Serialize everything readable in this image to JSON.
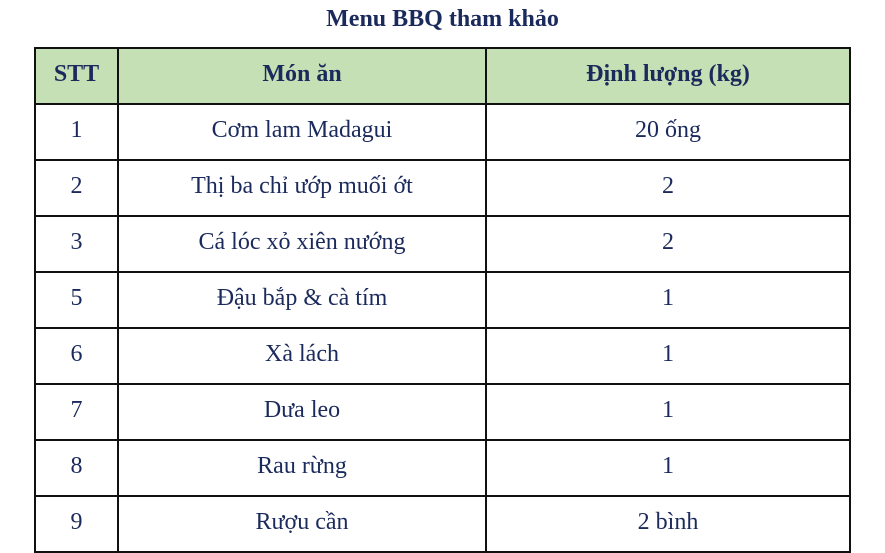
{
  "title": "Menu BBQ tham khảo",
  "colors": {
    "header_bg": "#c5e0b4",
    "text": "#1b2a5c"
  },
  "table": {
    "headers": [
      "STT",
      "Món ăn",
      "Định lượng (kg)"
    ],
    "rows": [
      [
        "1",
        "Cơm lam Madagui",
        "20 ống"
      ],
      [
        "2",
        "Thị ba chỉ ướp muối ớt",
        "2"
      ],
      [
        "3",
        "Cá lóc xỏ xiên nướng",
        "2"
      ],
      [
        "5",
        "Đậu bắp & cà tím",
        "1"
      ],
      [
        "6",
        "Xà lách",
        "1"
      ],
      [
        "7",
        "Dưa leo",
        "1"
      ],
      [
        "8",
        "Rau rừng",
        "1"
      ],
      [
        "9",
        "Rượu cần",
        "2 bình"
      ]
    ]
  }
}
